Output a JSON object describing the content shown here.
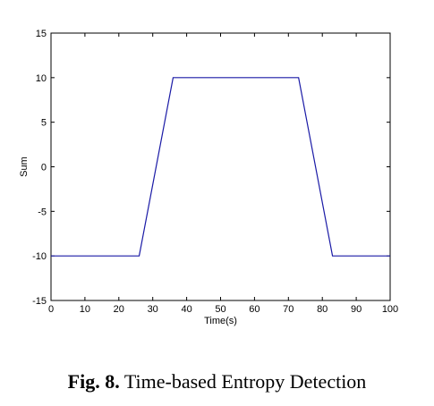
{
  "caption": {
    "label": "Fig. 8.",
    "text": "Time-based Entropy Detection"
  },
  "chart_data": {
    "type": "line",
    "xlabel": "Time(s)",
    "ylabel": "Sum",
    "xlim": [
      0,
      100
    ],
    "ylim": [
      -15,
      15
    ],
    "xticks": [
      0,
      10,
      20,
      30,
      40,
      50,
      60,
      70,
      80,
      90,
      100
    ],
    "yticks": [
      -15,
      -10,
      -5,
      0,
      5,
      10,
      15
    ],
    "grid": false,
    "legend": "none",
    "series": [
      {
        "color": "#1a1aa6",
        "x": [
          0,
          26,
          36,
          73,
          83,
          100
        ],
        "y": [
          -10,
          -10,
          10,
          10,
          -10,
          -10
        ]
      }
    ]
  }
}
